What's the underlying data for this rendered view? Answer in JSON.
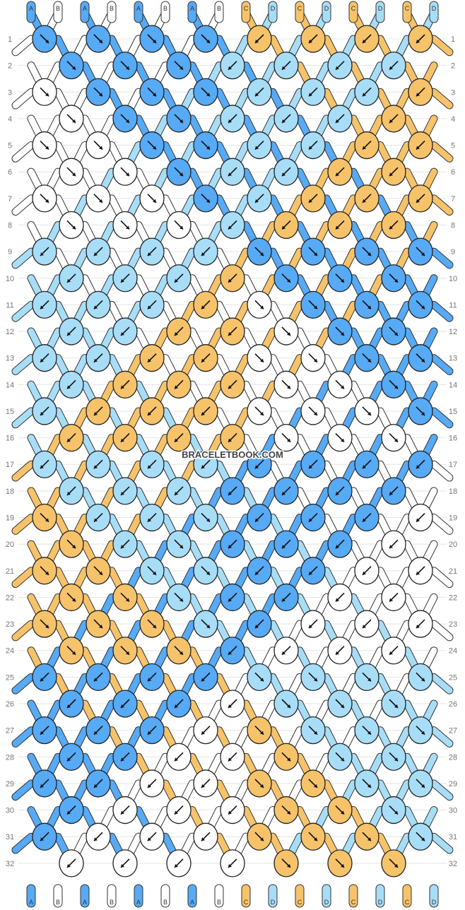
{
  "watermark": "BRACELETBOOK.COM",
  "colors": {
    "A": "#57aaf5",
    "B": "#ffffff",
    "C": "#f6c36b",
    "D": "#a8ddf7"
  },
  "strands_top": [
    "A",
    "B",
    "A",
    "B",
    "A",
    "B",
    "A",
    "B",
    "C",
    "D",
    "C",
    "D",
    "C",
    "D",
    "C",
    "D"
  ],
  "strands_bottom": [
    "A",
    "B",
    "A",
    "B",
    "A",
    "B",
    "A",
    "B",
    "C",
    "D",
    "C",
    "D",
    "C",
    "D",
    "C",
    "D"
  ],
  "row_numbers": [
    "1",
    "2",
    "3",
    "4",
    "5",
    "6",
    "7",
    "8",
    "9",
    "10",
    "11",
    "12",
    "13",
    "14",
    "15",
    "16",
    "17",
    "18",
    "19",
    "20",
    "21",
    "22",
    "23",
    "24",
    "25",
    "26",
    "27",
    "28",
    "29",
    "30",
    "31",
    "32"
  ],
  "knot_rows": [
    "AR AR AR AR CL CL CL CL",
    "AR AR AR DL DL DL DL",
    "BR AR AR AR DL DL DL CL",
    "BR AR AR DL DL DL CL",
    "BR BR AR AR DL DL CL CL",
    "BR BR AR DL DL CL CL",
    "BR BR BR AR DL CL CL CL",
    "BR BR BR DL CL CL CL",
    "DL DL DL DL AR AR AR AR",
    "DL DL DL CL AR AR AR",
    "DL DL DL CL BR AR AR AR",
    "DL DL CL CL BR AR AR",
    "DL DL CL CL BR BR AR AR",
    "DL CL CL CL BR BR AR",
    "DL CL CL CL BR BR BR AR",
    "CL CL CL CL BR BR BR",
    "DL DL DL DL AL AL AL AL",
    "DL DL DL AL AL AL AL",
    "CR DL DL DR AL AL AL BL",
    "CR DL DR AL AL AL BL",
    "CR CR DR DR AL AL BL BL",
    "CR CR DR AL AL BL BL",
    "CR CR CR DR AL BL BL BL",
    "CR CR CR AL BL BL BL",
    "AL AL AL AL DR DR DR DR",
    "AL AL AL BL DR DR DR",
    "AL AL AL BL CR DR DR DR",
    "AL AL BL BL CR DR DR",
    "AL AL BL BL CR CR DR DR",
    "AL BL BL BL CR CR DR",
    "AL BL BL BL CR CR CR DR",
    "BL BL BL BL CR CR CR"
  ]
}
